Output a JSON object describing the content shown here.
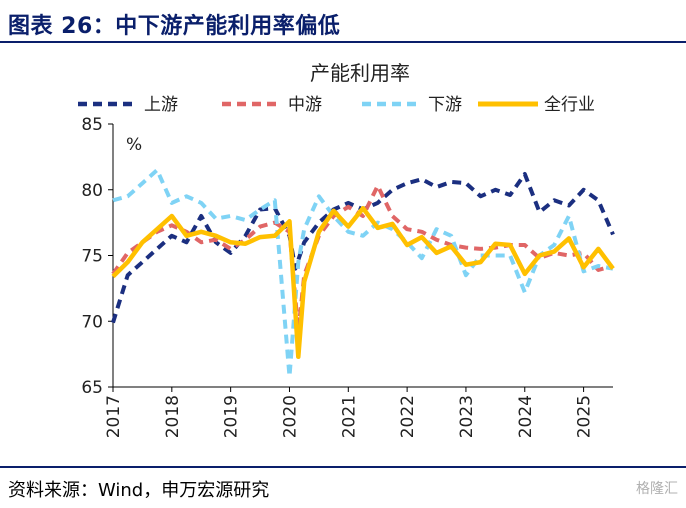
{
  "header": {
    "figure_title": "图表 26：中下游产能利用率偏低"
  },
  "footer": {
    "source": "资料来源：Wind，申万宏源研究",
    "watermark": "格隆汇"
  },
  "colors": {
    "upstream": "#1b2f80",
    "midstream": "#e06666",
    "downstream": "#7fd3f5",
    "all_industry": "#ffc000",
    "title": "#0a1f6b"
  },
  "chart_data": {
    "type": "line",
    "title": "产能利用率",
    "ylabel": "%",
    "xlabel": "",
    "ylim": [
      65,
      85
    ],
    "xlim": [
      2017.0,
      2025.5
    ],
    "yticks": [
      65,
      70,
      75,
      80,
      85
    ],
    "xticks": [
      "2017",
      "2018",
      "2019",
      "2020",
      "2021",
      "2022",
      "2023",
      "2024",
      "2025"
    ],
    "legend_position": "top",
    "series": [
      {
        "name": "上游",
        "style": "dashed",
        "color": "#1b2f80",
        "x": [
          2017.0,
          2017.25,
          2017.5,
          2017.75,
          2018.0,
          2018.25,
          2018.5,
          2018.75,
          2019.0,
          2019.25,
          2019.5,
          2019.75,
          2020.0,
          2020.1,
          2020.25,
          2020.5,
          2020.75,
          2021.0,
          2021.25,
          2021.5,
          2021.75,
          2022.0,
          2022.25,
          2022.5,
          2022.75,
          2023.0,
          2023.25,
          2023.5,
          2023.75,
          2024.0,
          2024.25,
          2024.5,
          2024.75,
          2025.0,
          2025.25,
          2025.5
        ],
        "y": [
          69.9,
          73.5,
          74.5,
          75.5,
          76.5,
          76.0,
          78.0,
          76.0,
          75.2,
          76.5,
          78.5,
          78.6,
          76.5,
          74.0,
          76.0,
          77.5,
          78.5,
          79.0,
          78.5,
          79.0,
          80.0,
          80.5,
          80.8,
          80.2,
          80.6,
          80.5,
          79.5,
          80.0,
          79.6,
          81.2,
          78.3,
          79.2,
          78.8,
          80.0,
          79.2,
          76.6
        ]
      },
      {
        "name": "中游",
        "style": "dashed",
        "color": "#e06666",
        "x": [
          2017.0,
          2017.25,
          2017.5,
          2017.75,
          2018.0,
          2018.25,
          2018.5,
          2018.75,
          2019.0,
          2019.25,
          2019.5,
          2019.75,
          2020.0,
          2020.15,
          2020.25,
          2020.5,
          2020.75,
          2021.0,
          2021.25,
          2021.5,
          2021.75,
          2022.0,
          2022.25,
          2022.5,
          2022.75,
          2023.0,
          2023.25,
          2023.5,
          2023.75,
          2024.0,
          2024.25,
          2024.5,
          2024.75,
          2025.0,
          2025.25,
          2025.5
        ],
        "y": [
          73.6,
          75.2,
          76.0,
          76.8,
          77.3,
          76.8,
          76.0,
          76.2,
          75.5,
          76.2,
          77.2,
          77.5,
          76.8,
          69.2,
          73.5,
          76.5,
          78.0,
          78.7,
          78.0,
          80.3,
          78.0,
          77.0,
          76.8,
          76.2,
          75.8,
          75.6,
          75.5,
          75.6,
          75.8,
          75.8,
          74.8,
          75.2,
          75.0,
          75.2,
          73.9,
          74.2
        ]
      },
      {
        "name": "下游",
        "style": "dashed",
        "color": "#7fd3f5",
        "x": [
          2017.0,
          2017.25,
          2017.5,
          2017.75,
          2018.0,
          2018.25,
          2018.5,
          2018.75,
          2019.0,
          2019.25,
          2019.5,
          2019.75,
          2020.0,
          2020.15,
          2020.25,
          2020.5,
          2020.75,
          2021.0,
          2021.25,
          2021.5,
          2021.75,
          2022.0,
          2022.25,
          2022.5,
          2022.75,
          2023.0,
          2023.25,
          2023.5,
          2023.75,
          2024.0,
          2024.25,
          2024.5,
          2024.75,
          2025.0,
          2025.25,
          2025.5
        ],
        "y": [
          79.2,
          79.5,
          80.5,
          81.5,
          79.0,
          79.5,
          79.0,
          77.8,
          78.0,
          77.7,
          78.5,
          79.2,
          65.8,
          74.5,
          77.0,
          79.5,
          78.0,
          76.8,
          76.5,
          77.5,
          77.0,
          76.0,
          74.8,
          77.0,
          76.5,
          73.5,
          75.0,
          75.0,
          75.0,
          72.2,
          75.0,
          75.8,
          78.0,
          73.8,
          74.2,
          74.0
        ]
      },
      {
        "name": "全行业",
        "style": "solid",
        "color": "#ffc000",
        "x": [
          2017.0,
          2017.25,
          2017.5,
          2017.75,
          2018.0,
          2018.25,
          2018.5,
          2018.75,
          2019.0,
          2019.25,
          2019.5,
          2019.75,
          2020.0,
          2020.15,
          2020.25,
          2020.5,
          2020.75,
          2021.0,
          2021.25,
          2021.5,
          2021.75,
          2022.0,
          2022.25,
          2022.5,
          2022.75,
          2023.0,
          2023.25,
          2023.5,
          2023.75,
          2024.0,
          2024.25,
          2024.5,
          2024.75,
          2025.0,
          2025.25,
          2025.5
        ],
        "y": [
          73.4,
          74.5,
          76.0,
          77.0,
          78.0,
          76.5,
          76.8,
          76.5,
          76.0,
          75.9,
          76.4,
          76.5,
          77.6,
          67.3,
          73.0,
          76.8,
          78.4,
          77.2,
          78.6,
          77.1,
          77.4,
          75.8,
          76.4,
          75.2,
          75.7,
          74.3,
          74.5,
          75.9,
          75.8,
          73.6,
          75.0,
          75.3,
          76.3,
          74.1,
          75.5,
          74.0
        ]
      }
    ]
  }
}
